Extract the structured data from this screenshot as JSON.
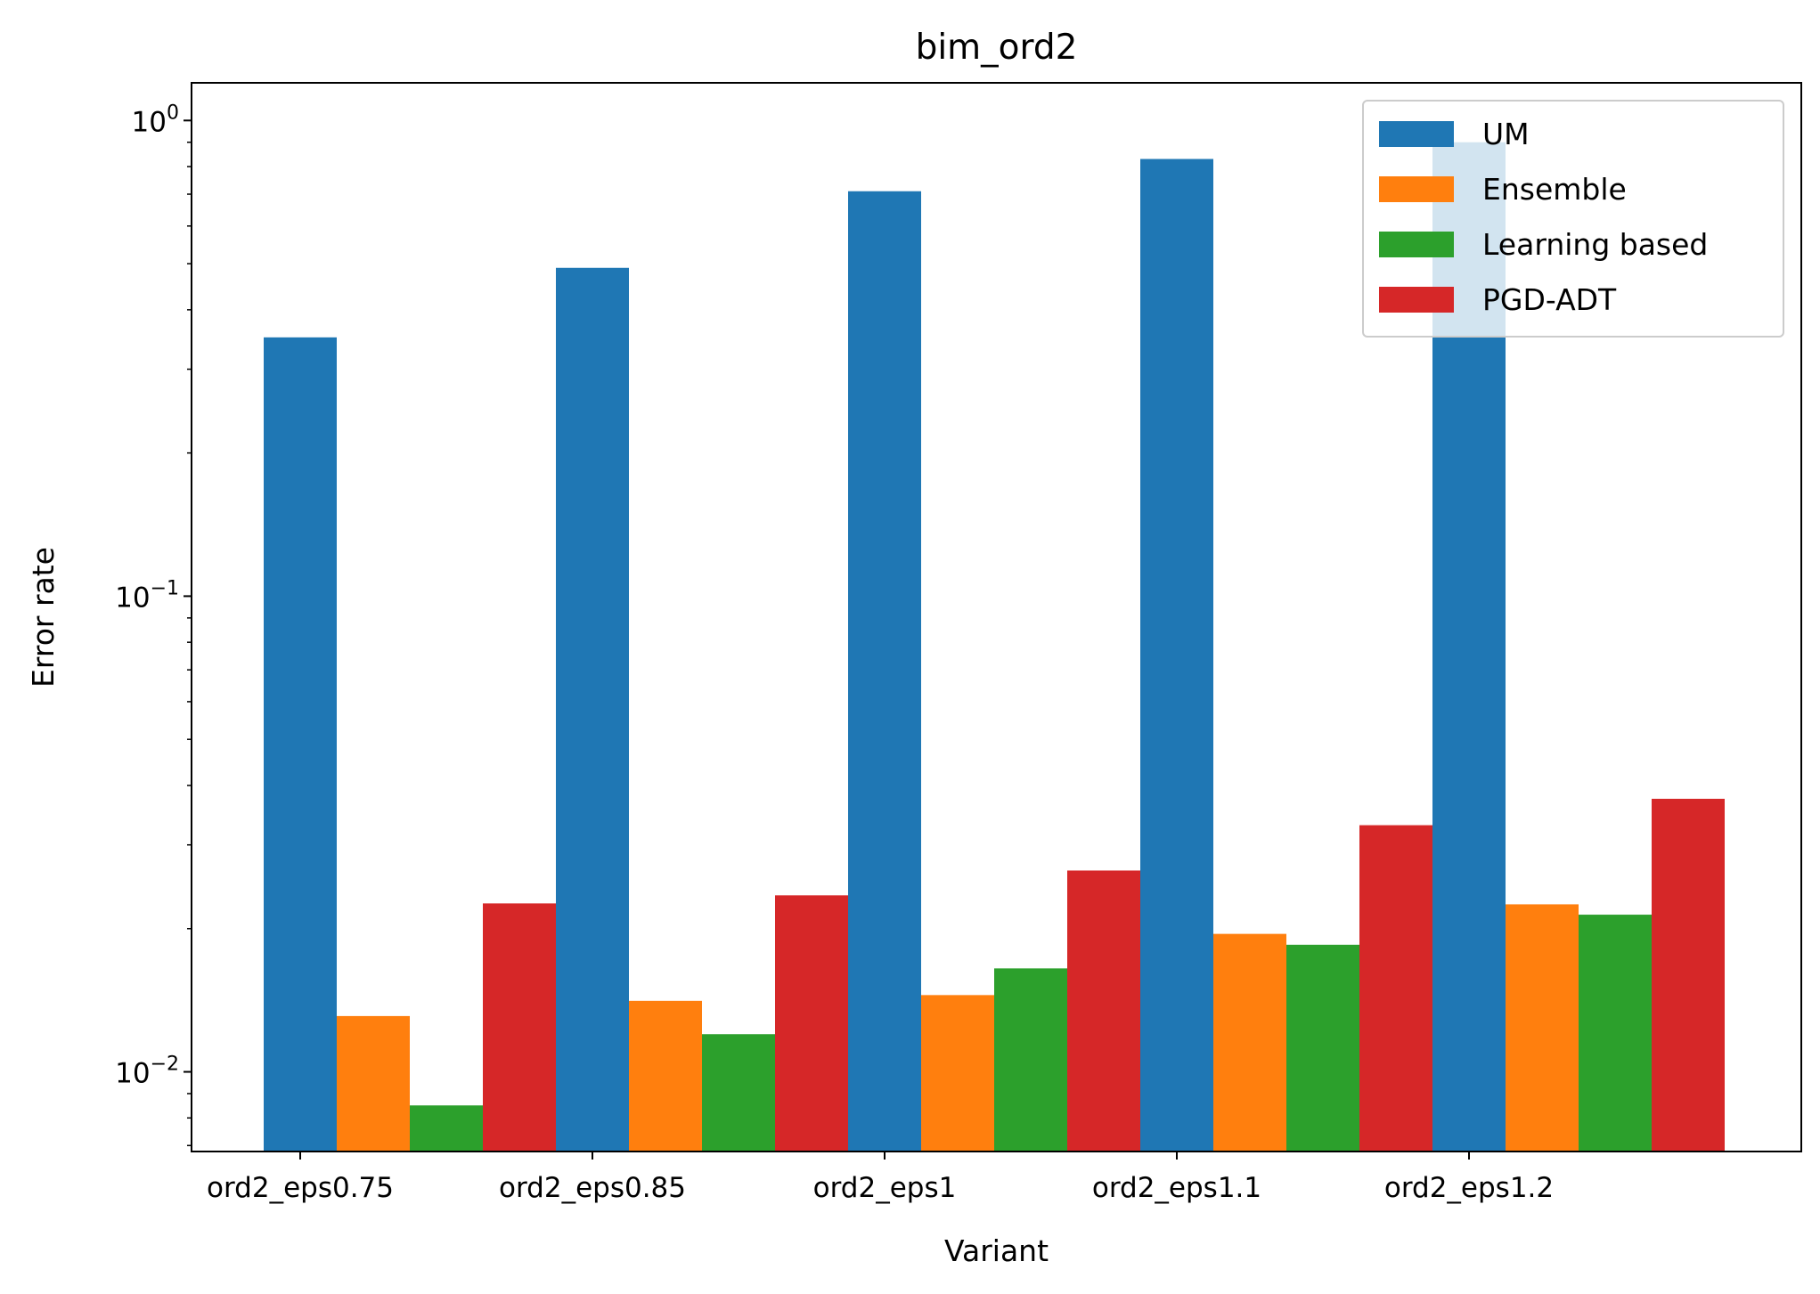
{
  "chart_data": {
    "type": "bar",
    "title": "bim_ord2",
    "xlabel": "Variant",
    "ylabel": "Error rate",
    "yscale": "log",
    "ylim": [
      0.0068,
      1.2
    ],
    "ytick_labels": [
      {
        "base": "10",
        "exp": "0",
        "value": 1
      },
      {
        "base": "10",
        "exp": "−1",
        "value": 0.1
      },
      {
        "base": "10",
        "exp": "−2",
        "value": 0.01
      }
    ],
    "categories": [
      "ord2_eps0.75",
      "ord2_eps0.85",
      "ord2_eps1",
      "ord2_eps1.1",
      "ord2_eps1.2"
    ],
    "series": [
      {
        "name": "UM",
        "color": "#1f77b4",
        "values": [
          0.35,
          0.49,
          0.71,
          0.83,
          0.9
        ]
      },
      {
        "name": "Ensemble",
        "color": "#ff7f0e",
        "values": [
          0.0131,
          0.0141,
          0.0145,
          0.0195,
          0.0225
        ]
      },
      {
        "name": "Learning based",
        "color": "#2ca02c",
        "values": [
          0.0085,
          0.012,
          0.0165,
          0.0185,
          0.0214
        ]
      },
      {
        "name": "PGD-ADT",
        "color": "#d62728",
        "values": [
          0.0226,
          0.0235,
          0.0265,
          0.033,
          0.0375
        ]
      }
    ],
    "legend_position": "top-right",
    "grid": false
  }
}
